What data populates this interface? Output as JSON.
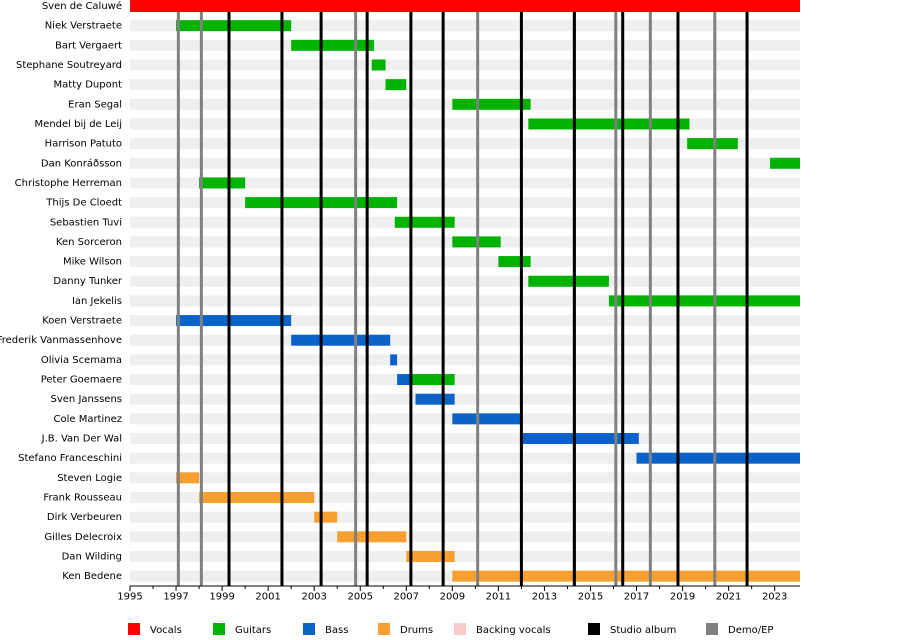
{
  "chart_data": {
    "type": "timeline",
    "legend": [
      {
        "name": "Vocals",
        "color": "#ff0000"
      },
      {
        "name": "Guitars",
        "color": "#00b300"
      },
      {
        "name": "Bass",
        "color": "#0b63c9"
      },
      {
        "name": "Drums",
        "color": "#f5a030"
      },
      {
        "name": "Backing vocals",
        "color": "#f8cccc"
      },
      {
        "name": "Studio album",
        "color": "#000000"
      },
      {
        "name": "Demo/EP",
        "color": "#808080"
      }
    ],
    "members": [
      {
        "name": "Sven de Caluwé",
        "spans": [
          {
            "role": "Vocals",
            "start": 1995,
            "end": 2024.1
          }
        ]
      },
      {
        "name": "Niek Verstraete",
        "spans": [
          {
            "role": "Guitars",
            "start": 1997,
            "end": 2002
          }
        ]
      },
      {
        "name": "Bart Vergaert",
        "spans": [
          {
            "role": "Guitars",
            "start": 2002,
            "end": 2005.6
          }
        ]
      },
      {
        "name": "Stephane Soutreyard",
        "spans": [
          {
            "role": "Guitars",
            "start": 2005.5,
            "end": 2006.1
          }
        ]
      },
      {
        "name": "Matty Dupont",
        "spans": [
          {
            "role": "Guitars",
            "start": 2006.1,
            "end": 2007
          }
        ]
      },
      {
        "name": "Eran Segal",
        "spans": [
          {
            "role": "Guitars",
            "start": 2009,
            "end": 2012.4
          }
        ]
      },
      {
        "name": "Mendel bij de Leij",
        "spans": [
          {
            "role": "Guitars",
            "start": 2012.3,
            "end": 2019.3
          }
        ]
      },
      {
        "name": "Harrison Patuto",
        "spans": [
          {
            "role": "Guitars",
            "start": 2019.2,
            "end": 2021.4
          }
        ]
      },
      {
        "name": "Dan Konráðsson",
        "spans": [
          {
            "role": "Guitars",
            "start": 2022.8,
            "end": 2024.1
          }
        ]
      },
      {
        "name": "Christophe Herreman",
        "spans": [
          {
            "role": "Guitars",
            "start": 1998,
            "end": 2000
          }
        ]
      },
      {
        "name": "Thijs De Cloedt",
        "spans": [
          {
            "role": "Guitars",
            "start": 2000,
            "end": 2006.6
          }
        ]
      },
      {
        "name": "Sebastien Tuvi",
        "spans": [
          {
            "role": "Guitars",
            "start": 2006.5,
            "end": 2009.1
          }
        ]
      },
      {
        "name": "Ken Sorceron",
        "spans": [
          {
            "role": "Guitars",
            "start": 2009,
            "end": 2011.1
          }
        ]
      },
      {
        "name": "Mike Wilson",
        "spans": [
          {
            "role": "Guitars",
            "start": 2011,
            "end": 2012.4
          }
        ]
      },
      {
        "name": "Danny Tunker",
        "spans": [
          {
            "role": "Guitars",
            "start": 2012.3,
            "end": 2015.8
          }
        ]
      },
      {
        "name": "Ian Jekelis",
        "spans": [
          {
            "role": "Guitars",
            "start": 2015.8,
            "end": 2024.1
          }
        ]
      },
      {
        "name": "Koen Verstraete",
        "spans": [
          {
            "role": "Bass",
            "start": 1997,
            "end": 2002
          }
        ]
      },
      {
        "name": "Frederik Vanmassenhove",
        "spans": [
          {
            "role": "Bass",
            "start": 2002,
            "end": 2006.3
          }
        ]
      },
      {
        "name": "Olivia Scemama",
        "spans": [
          {
            "role": "Bass",
            "start": 2006.3,
            "end": 2006.6
          }
        ]
      },
      {
        "name": "Peter Goemaere",
        "spans": [
          {
            "role": "Bass",
            "start": 2006.6,
            "end": 2007.2
          },
          {
            "role": "Guitars",
            "start": 2007.2,
            "end": 2009.1
          }
        ]
      },
      {
        "name": "Sven Janssens",
        "spans": [
          {
            "role": "Bass",
            "start": 2007.4,
            "end": 2009.1
          }
        ]
      },
      {
        "name": "Cole Martinez",
        "spans": [
          {
            "role": "Bass",
            "start": 2009,
            "end": 2012
          }
        ]
      },
      {
        "name": "J.B. Van Der Wal",
        "spans": [
          {
            "role": "Bass",
            "start": 2012,
            "end": 2017.1
          }
        ]
      },
      {
        "name": "Stefano Franceschini",
        "spans": [
          {
            "role": "Bass",
            "start": 2017,
            "end": 2024.1
          }
        ]
      },
      {
        "name": "Steven Logie",
        "spans": [
          {
            "role": "Drums",
            "start": 1997,
            "end": 1998
          }
        ]
      },
      {
        "name": "Frank Rousseau",
        "spans": [
          {
            "role": "Drums",
            "start": 1998,
            "end": 2003
          }
        ]
      },
      {
        "name": "Dirk Verbeuren",
        "spans": [
          {
            "role": "Drums",
            "start": 2003,
            "end": 2004
          }
        ]
      },
      {
        "name": "Gilles Delecroix",
        "spans": [
          {
            "role": "Drums",
            "start": 2004,
            "end": 2007
          }
        ]
      },
      {
        "name": "Dan Wilding",
        "spans": [
          {
            "role": "Drums",
            "start": 2007,
            "end": 2009.1
          }
        ]
      },
      {
        "name": "Ken Bedene",
        "spans": [
          {
            "role": "Drums",
            "start": 2009,
            "end": 2024.1
          }
        ]
      }
    ],
    "studio_albums": [
      1999.3,
      2001.6,
      2003.3,
      2005.3,
      2007.2,
      2008.6,
      2012,
      2014.3,
      2016.4,
      2018.8,
      2021.8
    ],
    "demos": [
      1997.1,
      1998.1,
      2004.8,
      2010.1,
      2014.3,
      2016.1,
      2017.6,
      2020.4
    ],
    "xlim": [
      1995,
      2024.1
    ],
    "xticks": [
      1995,
      1997,
      1999,
      2001,
      2003,
      2005,
      2007,
      2009,
      2011,
      2013,
      2015,
      2017,
      2019,
      2021,
      2023
    ]
  }
}
